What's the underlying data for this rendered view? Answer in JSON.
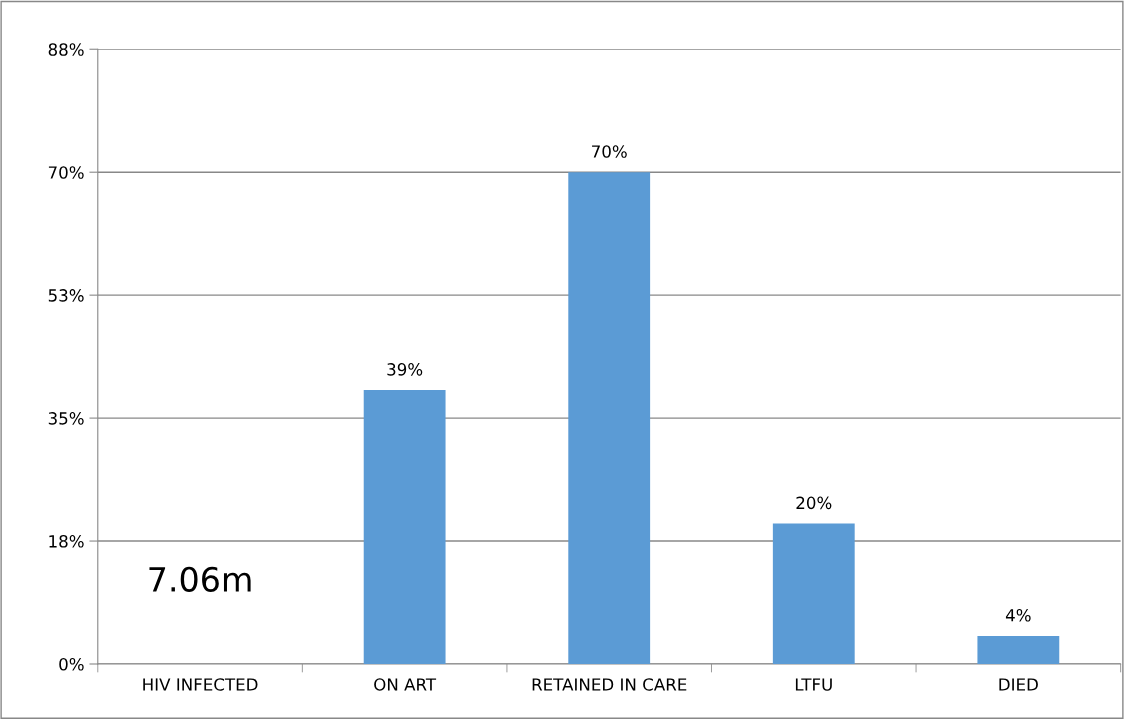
{
  "chart_data": {
    "type": "bar",
    "categories": [
      "HIV INFECTED",
      "ON ART",
      "RETAINED IN CARE",
      "LTFU",
      "DIED"
    ],
    "values": [
      null,
      39,
      70,
      20,
      4
    ],
    "value_labels": [
      null,
      "39%",
      "70%",
      "20%",
      "4%"
    ],
    "color": "#5b9bd5",
    "ylim": [
      0,
      87.5
    ],
    "yticks": [
      {
        "value": 0,
        "label": "0%"
      },
      {
        "value": 17.5,
        "label": "18%"
      },
      {
        "value": 35,
        "label": "35%"
      },
      {
        "value": 52.5,
        "label": "53%"
      },
      {
        "value": 70,
        "label": "70%"
      },
      {
        "value": 87.5,
        "label": "88%"
      }
    ],
    "grid": "y",
    "annotations": [
      "7.06m"
    ]
  }
}
